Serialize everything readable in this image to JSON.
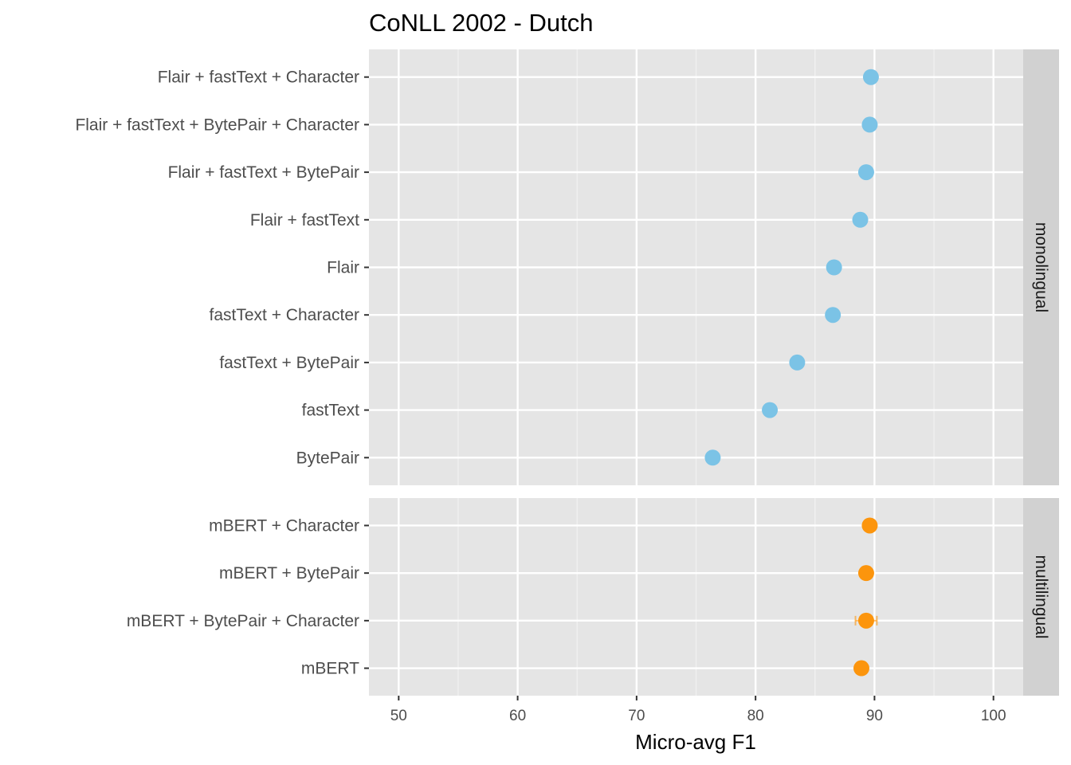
{
  "chart_data": {
    "type": "scatter",
    "title": "CoNLL 2002 - Dutch",
    "xlabel": "Micro-avg F1",
    "xlim": [
      47.5,
      102.5
    ],
    "xticks": [
      50,
      60,
      70,
      80,
      90,
      100
    ],
    "grid": true,
    "panels": [
      {
        "name": "monolingual",
        "color": "#7bc3e6",
        "points": [
          {
            "label": "Flair + fastText + Character",
            "x": 89.7,
            "err": 0.0
          },
          {
            "label": "Flair + fastText + BytePair + Character",
            "x": 89.6,
            "err": 0.0
          },
          {
            "label": "Flair + fastText + BytePair",
            "x": 89.3,
            "err": 0.0
          },
          {
            "label": "Flair + fastText",
            "x": 88.8,
            "err": 0.0
          },
          {
            "label": "Flair",
            "x": 86.6,
            "err": 0.0
          },
          {
            "label": "fastText + Character",
            "x": 86.5,
            "err": 0.0
          },
          {
            "label": "fastText + BytePair",
            "x": 83.5,
            "err": 0.0
          },
          {
            "label": "fastText",
            "x": 81.2,
            "err": 0.0
          },
          {
            "label": "BytePair",
            "x": 76.4,
            "err": 0.0
          }
        ]
      },
      {
        "name": "multilingual",
        "color": "#fc950d",
        "points": [
          {
            "label": "mBERT + Character",
            "x": 89.6,
            "err": 0.0
          },
          {
            "label": "mBERT + BytePair",
            "x": 89.3,
            "err": 0.0
          },
          {
            "label": "mBERT + BytePair + Character",
            "x": 89.3,
            "err": 0.9
          },
          {
            "label": "mBERT",
            "x": 88.9,
            "err": 0.0
          }
        ]
      }
    ]
  }
}
